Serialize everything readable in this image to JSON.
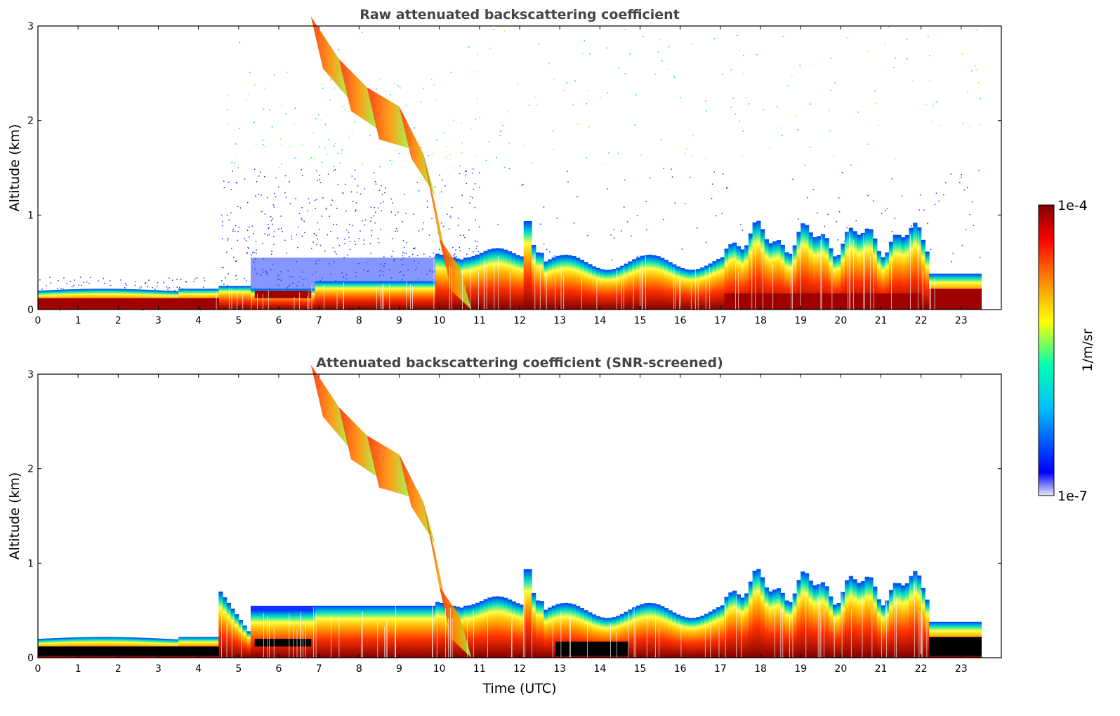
{
  "chart_data": [
    {
      "type": "heatmap",
      "title": "Raw attenuated backscattering coefficient",
      "xlabel": "",
      "ylabel": "Altitude (km)",
      "xlim": [
        0,
        24
      ],
      "ylim": [
        0,
        3
      ],
      "x_ticks": [
        "0",
        "1",
        "2",
        "3",
        "4",
        "5",
        "6",
        "7",
        "8",
        "9",
        "10",
        "11",
        "12",
        "13",
        "14",
        "15",
        "16",
        "17",
        "18",
        "19",
        "20",
        "21",
        "22",
        "23"
      ],
      "y_ticks": [
        "0",
        "1",
        "2",
        "3"
      ],
      "data_end_hour": 23.5,
      "noise_level": 0.6,
      "layers": [
        {
          "name": "boundary layer (lower)",
          "points": [
            [
              0,
              0.12
            ],
            [
              3,
              0.16
            ],
            [
              4,
              0.2
            ],
            [
              5,
              0.12
            ],
            [
              6,
              0.2
            ],
            [
              7,
              0.3
            ],
            [
              9,
              0.4
            ],
            [
              10,
              0.5
            ],
            [
              11,
              0.6
            ],
            [
              13,
              0.35
            ],
            [
              15,
              0.45
            ],
            [
              17,
              0.55
            ],
            [
              20,
              0.6
            ],
            [
              22,
              0.6
            ],
            [
              22.3,
              0.3
            ],
            [
              23.5,
              0.3
            ]
          ]
        },
        {
          "name": "cloud band",
          "points": [
            [
              6.8,
              2.9
            ],
            [
              7.5,
              2.5
            ],
            [
              8.2,
              2.2
            ],
            [
              9,
              2.0
            ],
            [
              9.6,
              1.5
            ],
            [
              10,
              0.6
            ],
            [
              10.5,
              0.3
            ]
          ]
        }
      ]
    },
    {
      "type": "heatmap",
      "title": "Attenuated backscattering coefficient (SNR-screened)",
      "xlabel": "Time (UTC)",
      "ylabel": "Altitude (km)",
      "xlim": [
        0,
        24
      ],
      "ylim": [
        0,
        3
      ],
      "x_ticks": [
        "0",
        "1",
        "2",
        "3",
        "4",
        "5",
        "6",
        "7",
        "8",
        "9",
        "10",
        "11",
        "12",
        "13",
        "14",
        "15",
        "16",
        "17",
        "18",
        "19",
        "20",
        "21",
        "22",
        "23"
      ],
      "y_ticks": [
        "0",
        "1",
        "2",
        "3"
      ],
      "data_end_hour": 23.5,
      "noise_level": 0.0,
      "masked_color": "#000000"
    }
  ],
  "colorbar": {
    "label": "1/m/sr",
    "max_label": "1e-4",
    "min_label": "1e-7",
    "colormap": [
      "#e8e8f8",
      "#0000ff",
      "#00bfff",
      "#00ffb0",
      "#ffff00",
      "#ff8000",
      "#ff0000",
      "#800000"
    ]
  }
}
